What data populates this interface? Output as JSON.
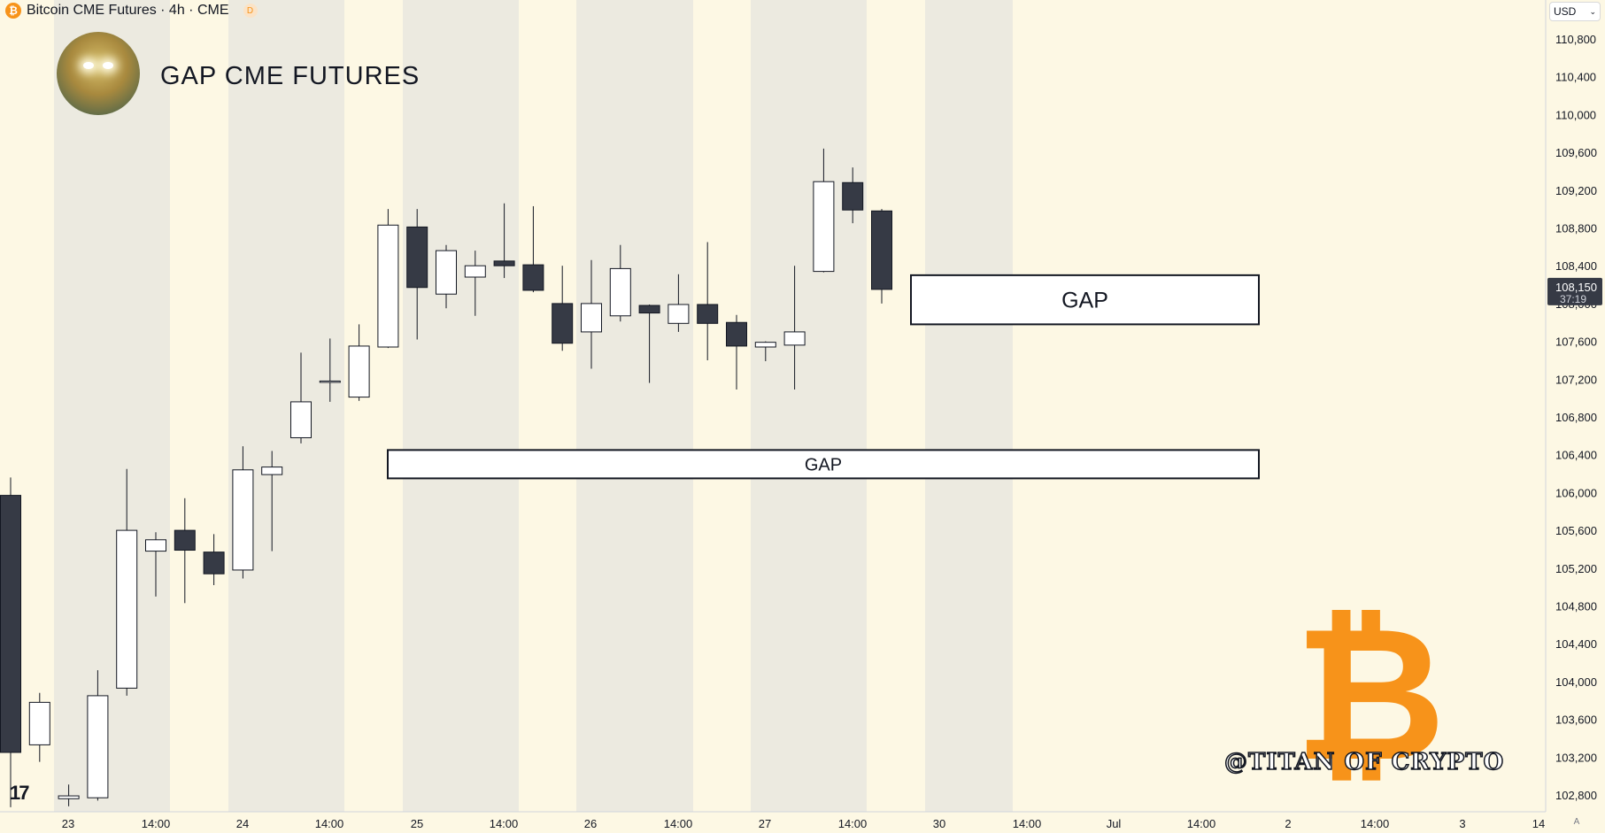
{
  "header": {
    "symbol_icon": "bitcoin-icon",
    "symbol_label": "Bitcoin CME Futures · 4h · CME",
    "badge": "D"
  },
  "overlay_title": "GAP CME FUTURES",
  "currency": {
    "label": "USD",
    "icon": "chevron-down-icon"
  },
  "price_badge": {
    "price": "108,150",
    "countdown": "37:19"
  },
  "watermark": {
    "logo_icon": "tradingview-logo-icon",
    "logo_text": "17"
  },
  "brand": {
    "bitcoin_symbol": "₿",
    "handle": "@TITAN OF CRYPTO"
  },
  "auto_label": "A",
  "colors": {
    "accent": "#f7931a",
    "bear": "#363a45",
    "bull": "#ffffff",
    "bg": "#fdf8e4",
    "band": "#eceae0"
  },
  "chart_data": {
    "type": "candlestick",
    "title": "GAP CME FUTURES",
    "x_tick_labels": [
      "23",
      "14:00",
      "24",
      "14:00",
      "25",
      "14:00",
      "26",
      "14:00",
      "27",
      "14:00",
      "30",
      "14:00",
      "Jul",
      "14:00",
      "2",
      "14:00",
      "3",
      "14"
    ],
    "y_tick_labels": [
      "102,800",
      "103,200",
      "103,600",
      "104,000",
      "104,400",
      "104,800",
      "105,200",
      "105,600",
      "106,000",
      "106,400",
      "106,800",
      "107,200",
      "107,600",
      "108,000",
      "108,400",
      "108,800",
      "109,200",
      "109,600",
      "110,000",
      "110,400",
      "110,800"
    ],
    "ylim": [
      102750,
      110850
    ],
    "gaps": [
      {
        "label": "GAP",
        "from": 106150,
        "to": 106450
      },
      {
        "label": "GAP",
        "from": 107780,
        "to": 108300
      }
    ],
    "candles": [
      {
        "o": 105970,
        "h": 106160,
        "l": 102670,
        "c": 103250
      },
      {
        "o": 103330,
        "h": 103880,
        "l": 103150,
        "c": 103780
      },
      {
        "o": 102760,
        "h": 102910,
        "l": 102680,
        "c": 102790
      },
      {
        "o": 102770,
        "h": 104120,
        "l": 102740,
        "c": 103850
      },
      {
        "o": 103930,
        "h": 106250,
        "l": 103850,
        "c": 105600
      },
      {
        "o": 105380,
        "h": 105580,
        "l": 104900,
        "c": 105500
      },
      {
        "o": 105600,
        "h": 105940,
        "l": 104830,
        "c": 105390
      },
      {
        "o": 105370,
        "h": 105560,
        "l": 105020,
        "c": 105140
      },
      {
        "o": 105180,
        "h": 106490,
        "l": 105090,
        "c": 106240
      },
      {
        "o": 106190,
        "h": 106440,
        "l": 105380,
        "c": 106270
      },
      {
        "o": 106580,
        "h": 107480,
        "l": 106520,
        "c": 106960
      },
      {
        "o": 107180,
        "h": 107630,
        "l": 106960,
        "c": 107180
      },
      {
        "o": 107010,
        "h": 107780,
        "l": 106970,
        "c": 107550
      },
      {
        "o": 107540,
        "h": 109000,
        "l": 107530,
        "c": 108830
      },
      {
        "o": 108810,
        "h": 109000,
        "l": 107620,
        "c": 108170
      },
      {
        "o": 108100,
        "h": 108620,
        "l": 107950,
        "c": 108560
      },
      {
        "o": 108280,
        "h": 108560,
        "l": 107870,
        "c": 108400
      },
      {
        "o": 108450,
        "h": 109060,
        "l": 108270,
        "c": 108400
      },
      {
        "o": 108410,
        "h": 109030,
        "l": 108120,
        "c": 108140
      },
      {
        "o": 108000,
        "h": 108400,
        "l": 107500,
        "c": 107580
      },
      {
        "o": 107700,
        "h": 108460,
        "l": 107310,
        "c": 108000
      },
      {
        "o": 107870,
        "h": 108620,
        "l": 107810,
        "c": 108370
      },
      {
        "o": 107980,
        "h": 107990,
        "l": 107160,
        "c": 107900
      },
      {
        "o": 107790,
        "h": 108310,
        "l": 107700,
        "c": 107990
      },
      {
        "o": 107990,
        "h": 108650,
        "l": 107400,
        "c": 107790
      },
      {
        "o": 107800,
        "h": 107880,
        "l": 107090,
        "c": 107550
      },
      {
        "o": 107540,
        "h": 107600,
        "l": 107390,
        "c": 107590
      },
      {
        "o": 107560,
        "h": 108400,
        "l": 107090,
        "c": 107700
      },
      {
        "o": 108340,
        "h": 109640,
        "l": 108330,
        "c": 109290
      },
      {
        "o": 109280,
        "h": 109440,
        "l": 108850,
        "c": 108990
      },
      {
        "o": 108980,
        "h": 109000,
        "l": 108000,
        "c": 108150
      }
    ]
  }
}
